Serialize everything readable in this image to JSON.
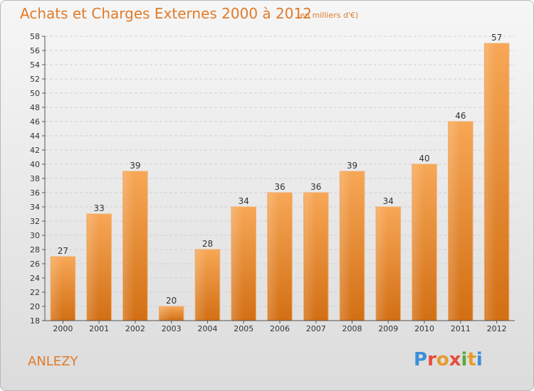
{
  "header": {
    "title": "Achats et Charges Externes 2000 à 2012",
    "subtitle": "(en milliers d'€)"
  },
  "footer": {
    "commune": "ANLEZY",
    "logo_text": "Proxiti",
    "logo_colors": [
      "#3a8fd8",
      "#e74c3c",
      "#e89a2c",
      "#e74c3c",
      "#5aa83a",
      "#e89a2c",
      "#3a8fd8"
    ]
  },
  "colors": {
    "accent": "#e07b2a",
    "bar_top": "#f7a756",
    "bar_bottom": "#d26f14",
    "grid": "#d0d0d0",
    "axis": "#555555"
  },
  "chart_data": {
    "type": "bar",
    "categories": [
      "2000",
      "2001",
      "2002",
      "2003",
      "2004",
      "2005",
      "2006",
      "2007",
      "2008",
      "2009",
      "2010",
      "2011",
      "2012"
    ],
    "values": [
      27,
      33,
      39,
      20,
      28,
      34,
      36,
      36,
      39,
      34,
      40,
      46,
      57
    ],
    "ylim": [
      18,
      58
    ],
    "ytick_step": 2,
    "grid": true,
    "xlabel": "",
    "ylabel": ""
  }
}
